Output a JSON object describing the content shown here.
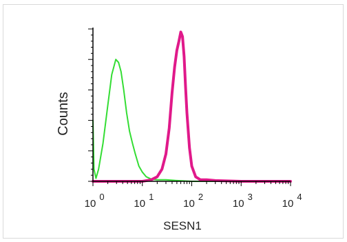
{
  "chart_data": {
    "type": "area",
    "title": "",
    "xlabel": "SESN1",
    "ylabel": "Counts",
    "x_scale": "log",
    "xlim": [
      1,
      10000
    ],
    "ylim": [
      0,
      100
    ],
    "grid": false,
    "x_ticks": [
      {
        "value": 1,
        "base": "10",
        "exp": "0"
      },
      {
        "value": 10,
        "base": "10",
        "exp": "1"
      },
      {
        "value": 100,
        "base": "10",
        "exp": "2"
      },
      {
        "value": 1000,
        "base": "10",
        "exp": "3"
      },
      {
        "value": 10000,
        "base": "10",
        "exp": "4"
      }
    ],
    "series": [
      {
        "color": "#33dd33",
        "x": [
          1,
          1.05,
          1.15,
          1.3,
          1.6,
          2.0,
          2.4,
          2.9,
          3.3,
          3.7,
          4.2,
          4.8,
          5.5,
          6.3,
          7.2,
          8.5,
          10,
          12,
          15,
          20,
          30,
          50,
          100,
          1000,
          10000
        ],
        "y": [
          40,
          8,
          2,
          8,
          25,
          50,
          70,
          80,
          78,
          72,
          60,
          45,
          33,
          25,
          18,
          10,
          6,
          3,
          1.5,
          1,
          1,
          0.5,
          0,
          0,
          0
        ]
      },
      {
        "color": "#e0198a",
        "x": [
          1,
          10,
          15,
          20,
          25,
          30,
          35,
          40,
          45,
          50,
          55,
          60,
          65,
          70,
          75,
          80,
          90,
          100,
          120,
          150,
          200,
          300,
          1000,
          10000
        ],
        "y": [
          0,
          0,
          1,
          3,
          8,
          18,
          35,
          58,
          75,
          86,
          92,
          98,
          95,
          82,
          62,
          45,
          22,
          10,
          3,
          1,
          1,
          0.5,
          0,
          0
        ]
      }
    ]
  }
}
